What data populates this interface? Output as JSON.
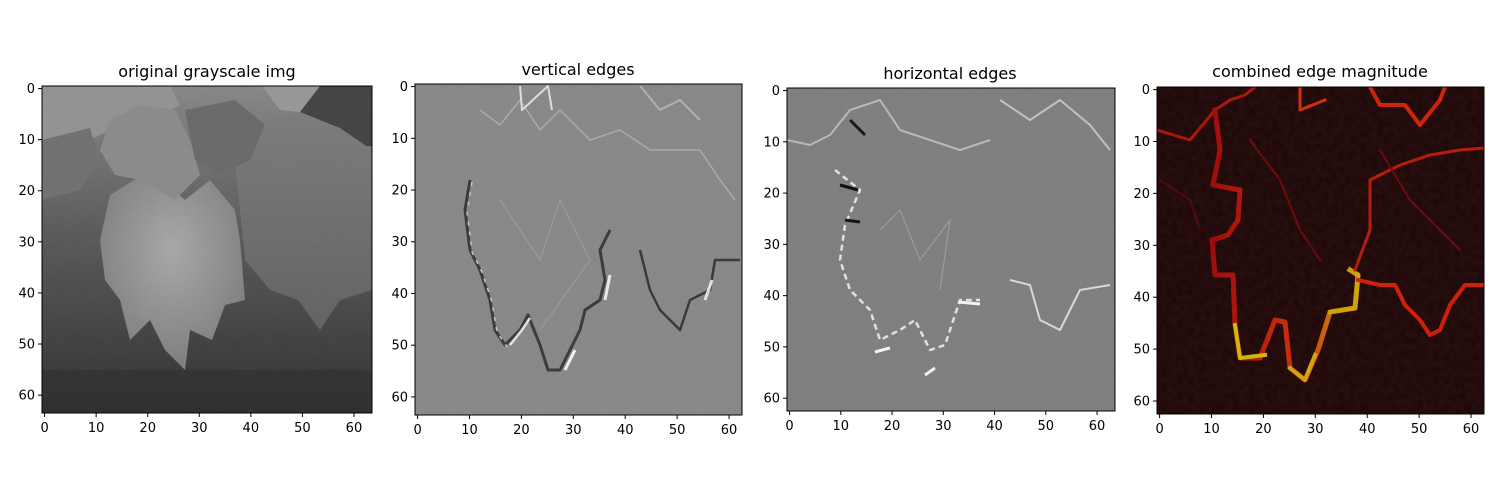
{
  "chart_data": [
    {
      "type": "heatmap",
      "title": "original grayscale img",
      "colormap": "gray",
      "xlim": [
        -0.5,
        63.5
      ],
      "ylim": [
        63.5,
        -0.5
      ],
      "xticks": [
        0,
        10,
        20,
        30,
        40,
        50,
        60
      ],
      "yticks": [
        0,
        10,
        20,
        30,
        40,
        50,
        60
      ],
      "xlabel": "",
      "ylabel": ""
    },
    {
      "type": "heatmap",
      "title": "vertical edges",
      "colormap": "gray",
      "xlim": [
        -0.5,
        62.5
      ],
      "ylim": [
        63.5,
        -0.5
      ],
      "xticks": [
        0,
        10,
        20,
        30,
        40,
        50,
        60
      ],
      "yticks": [
        0,
        10,
        20,
        30,
        40,
        50,
        60
      ],
      "xlabel": "",
      "ylabel": ""
    },
    {
      "type": "heatmap",
      "title": "horizontal edges",
      "colormap": "gray",
      "xlim": [
        -0.5,
        63.5
      ],
      "ylim": [
        62.5,
        -0.5
      ],
      "xticks": [
        0,
        10,
        20,
        30,
        40,
        50,
        60
      ],
      "yticks": [
        0,
        10,
        20,
        30,
        40,
        50,
        60
      ],
      "xlabel": "",
      "ylabel": ""
    },
    {
      "type": "heatmap",
      "title": "combined edge magnitude",
      "colormap": "hot",
      "xlim": [
        -0.5,
        62.5
      ],
      "ylim": [
        62.5,
        -0.5
      ],
      "xticks": [
        0,
        10,
        20,
        30,
        40,
        50,
        60
      ],
      "yticks": [
        0,
        10,
        20,
        30,
        40,
        50,
        60
      ],
      "xlabel": "",
      "ylabel": ""
    }
  ]
}
